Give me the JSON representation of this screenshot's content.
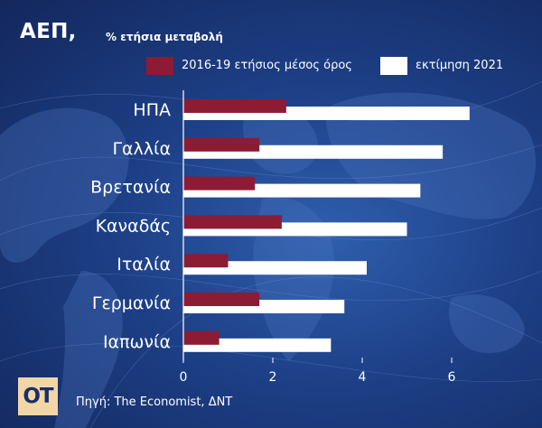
{
  "header": {
    "title": "ΑΕΠ,",
    "subtitle": "% ετήσια μεταβολή"
  },
  "legend": [
    {
      "label": "2016-19 ετήσιος μέσος όρος",
      "color": "#8b1c34"
    },
    {
      "label": "εκτίμηση 2021",
      "color": "#ffffff"
    }
  ],
  "chart_data": {
    "type": "bar",
    "orientation": "horizontal",
    "categories": [
      "ΗΠΑ",
      "Γαλλία",
      "Βρετανία",
      "Καναδάς",
      "Ιταλία",
      "Γερμανία",
      "Ιαπωνία"
    ],
    "series": [
      {
        "name": "2016-19 ετήσιος μέσος όρος",
        "values": [
          2.3,
          1.7,
          1.6,
          2.2,
          1.0,
          1.7,
          0.8
        ]
      },
      {
        "name": "εκτίμηση 2021",
        "values": [
          6.4,
          5.8,
          5.3,
          5.0,
          4.1,
          3.6,
          3.3
        ]
      }
    ],
    "xlim": [
      0,
      6.4
    ],
    "xticks": [
      0,
      2,
      4,
      6
    ],
    "colors": {
      "series1": "#8b1c34",
      "series2": "#ffffff",
      "axis": "#ffffff"
    }
  },
  "footer": {
    "logo_text": "ΟΤ",
    "source": "Πηγή: The Economist, ΔΝΤ"
  }
}
